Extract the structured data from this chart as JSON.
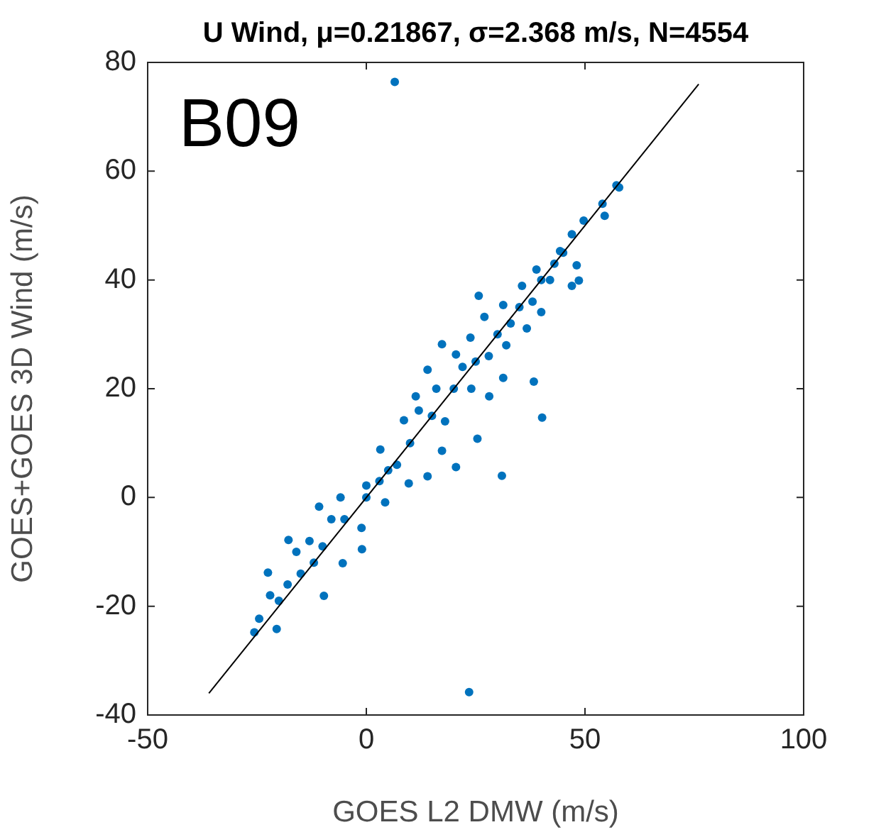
{
  "chart_data": {
    "type": "scatter",
    "title": "U Wind, μ=0.21867, σ=2.368 m/s, N=4554",
    "xlabel": "GOES L2 DMW (m/s)",
    "ylabel": "GOES+GOES 3D Wind (m/s)",
    "annotations": [
      "B09"
    ],
    "xlim": [
      -50,
      100
    ],
    "xticks": [
      -50,
      0,
      50,
      100
    ],
    "ylim": [
      -40,
      80
    ],
    "yticks": [
      -40,
      -20,
      0,
      20,
      40,
      60,
      80
    ],
    "grid": false,
    "legend": false,
    "series": [
      {
        "color": "#0072bd",
        "marker": "circle",
        "x": [
          6.5,
          23.5,
          31,
          40.2,
          38.3,
          25.7,
          47,
          48.6,
          17.3,
          -1,
          -25.6,
          -24.5,
          -22.5,
          -17.8,
          -10.8,
          -5.9,
          0,
          3.2,
          8.6,
          11.3,
          14,
          20.5,
          23.8,
          27,
          31.3,
          35.6,
          38.9,
          44.3,
          47,
          49.7,
          54,
          57.2,
          -20.5,
          -9.7,
          -5.4,
          -1.1,
          4.3,
          9.7,
          14,
          20.5,
          17.3,
          25.4,
          28.1,
          31.3,
          36.7,
          40,
          48.1,
          54.5,
          57.8,
          -20,
          -15,
          -10,
          -5,
          0,
          5,
          10,
          15,
          20,
          25,
          30,
          35,
          40,
          45,
          -18,
          -13,
          -8,
          12,
          18,
          22,
          28,
          33,
          38,
          43,
          -22,
          -16,
          -12,
          3,
          7,
          16,
          24,
          32,
          42
        ],
        "values": [
          76.4,
          -35.8,
          4,
          14.7,
          21.3,
          37.1,
          38.9,
          39.9,
          28.2,
          -9.5,
          -24.8,
          -22.3,
          -13.8,
          -7.8,
          -1.7,
          0,
          2.2,
          8.8,
          14.2,
          18.6,
          23.5,
          26.3,
          29.4,
          33.2,
          35.4,
          38.9,
          41.9,
          45.3,
          48.4,
          50.9,
          54,
          57.4,
          -24.2,
          -18.1,
          -12.1,
          -5.6,
          -0.9,
          2.6,
          3.9,
          5.6,
          8.6,
          10.8,
          18.6,
          22,
          31.1,
          34.1,
          42.7,
          51.8,
          57,
          -19,
          -14,
          -9,
          -4,
          0,
          5,
          10,
          15,
          20,
          25,
          30,
          35,
          40,
          45,
          -16,
          -8,
          -4,
          16,
          14,
          24,
          26,
          32,
          36,
          43,
          -18,
          -10,
          -12,
          3,
          6,
          20,
          20,
          28,
          40
        ]
      },
      {
        "type": "line",
        "color": "#000000",
        "marker": "none",
        "x": [
          -36,
          76
        ],
        "values": [
          -36,
          76
        ]
      }
    ]
  }
}
